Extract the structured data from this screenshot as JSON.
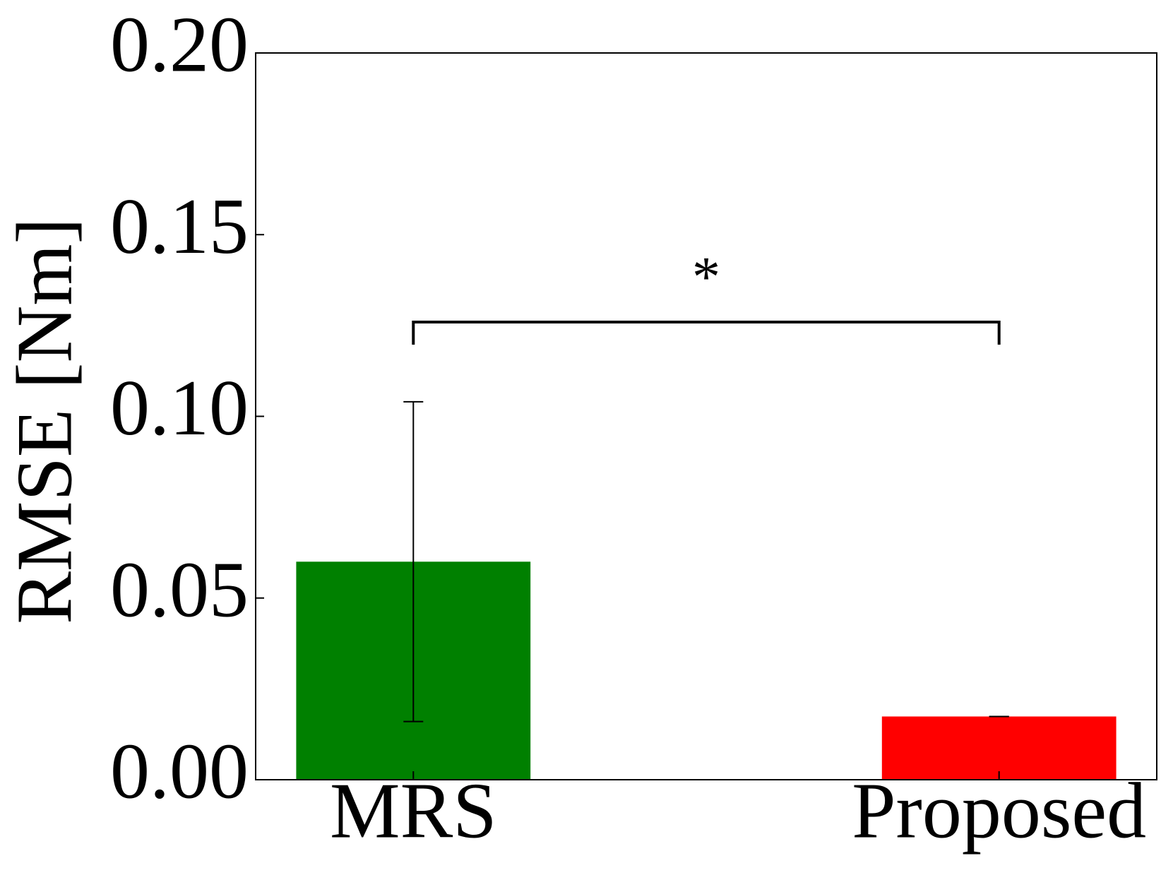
{
  "chart_data": {
    "type": "bar",
    "y_label": "RMSE [Nm]",
    "categories": [
      "MRS",
      "Proposed"
    ],
    "values": [
      0.06,
      0.0174
    ],
    "errors": [
      0.044,
      0.0
    ],
    "colors": [
      "#008000",
      "#ff0000"
    ],
    "annotation": "*",
    "ylim": [
      0,
      0.2
    ],
    "yticks": [
      {
        "value": 0,
        "label": "0.00"
      },
      {
        "value": 0.05,
        "label": "0.05"
      },
      {
        "value": 0.1,
        "label": "0.10"
      },
      {
        "value": 0.15,
        "label": "0.15"
      },
      {
        "value": 0.2,
        "label": "0.20"
      }
    ],
    "grid": false
  }
}
